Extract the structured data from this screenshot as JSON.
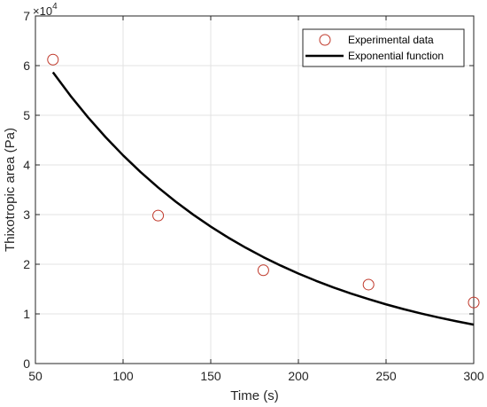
{
  "chart_data": {
    "type": "scatter",
    "xlabel": "Time (s)",
    "ylabel": "Thixotropic area (Pa)",
    "xlim": [
      50,
      300
    ],
    "ylim": [
      0,
      70000
    ],
    "y_multiplier": {
      "base": "×10",
      "exponent": "4"
    },
    "x_ticks": [
      50,
      100,
      150,
      200,
      250,
      300
    ],
    "y_ticks": [
      0,
      10000,
      20000,
      30000,
      40000,
      50000,
      60000,
      70000
    ],
    "y_tick_labels": [
      "0",
      "1",
      "2",
      "3",
      "4",
      "5",
      "6",
      "7"
    ],
    "grid": true,
    "legend_position": "top-right",
    "series": [
      {
        "name": "Experimental data",
        "kind": "scatter",
        "marker": "open-circle",
        "color": "#c0392b",
        "x": [
          60,
          120,
          180,
          240,
          300
        ],
        "y": [
          61200,
          29800,
          18800,
          15900,
          12300
        ]
      },
      {
        "name": "Exponential function",
        "kind": "line",
        "color": "#000000",
        "x": [
          60,
          70,
          80,
          90,
          100,
          110,
          120,
          130,
          140,
          150,
          160,
          170,
          180,
          190,
          200,
          210,
          220,
          230,
          240,
          250,
          260,
          270,
          280,
          290,
          300
        ],
        "y": [
          58650,
          53920,
          49590,
          45600,
          41930,
          38560,
          35460,
          32610,
          29990,
          27580,
          25360,
          23320,
          21440,
          19720,
          18130,
          16670,
          15330,
          14100,
          12970,
          11920,
          10960,
          10080,
          9270,
          8530,
          7840
        ]
      }
    ]
  }
}
